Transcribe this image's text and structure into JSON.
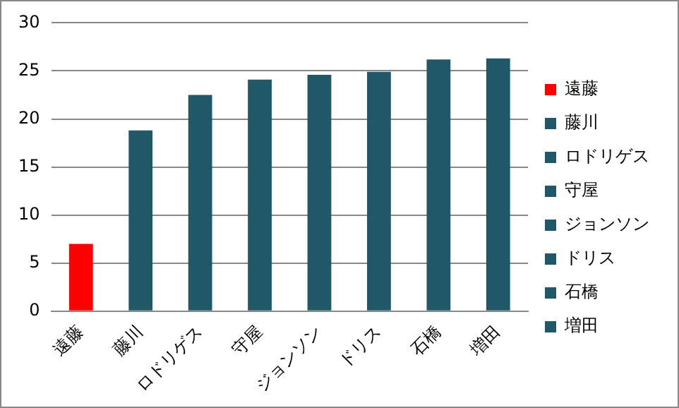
{
  "chart_data": {
    "type": "bar",
    "categories": [
      "遠藤",
      "藤川",
      "ロドリゲス",
      "守屋",
      "ジョンソン",
      "ドリス",
      "石橋",
      "増田"
    ],
    "series": [
      {
        "name": "遠藤",
        "color": "#ff0000",
        "values": [
          7.0,
          null,
          null,
          null,
          null,
          null,
          null,
          null
        ]
      },
      {
        "name": "藤川",
        "color": "#215868",
        "values": [
          null,
          18.8,
          null,
          null,
          null,
          null,
          null,
          null
        ]
      },
      {
        "name": "ロドリゲス",
        "color": "#215868",
        "values": [
          null,
          null,
          22.5,
          null,
          null,
          null,
          null,
          null
        ]
      },
      {
        "name": "守屋",
        "color": "#215868",
        "values": [
          null,
          null,
          null,
          24.1,
          null,
          null,
          null,
          null
        ]
      },
      {
        "name": "ジョンソン",
        "color": "#215868",
        "values": [
          null,
          null,
          null,
          null,
          24.6,
          null,
          null,
          null
        ]
      },
      {
        "name": "ドリス",
        "color": "#215868",
        "values": [
          null,
          null,
          null,
          null,
          null,
          24.9,
          null,
          null
        ]
      },
      {
        "name": "石橋",
        "color": "#215868",
        "values": [
          null,
          null,
          null,
          null,
          null,
          null,
          26.2,
          null
        ]
      },
      {
        "name": "増田",
        "color": "#215868",
        "values": [
          null,
          null,
          null,
          null,
          null,
          null,
          null,
          26.3
        ]
      }
    ],
    "ylim": [
      0,
      30
    ],
    "yticks": [
      0,
      5,
      10,
      15,
      20,
      25,
      30
    ],
    "grid": "y",
    "legend": "right"
  }
}
